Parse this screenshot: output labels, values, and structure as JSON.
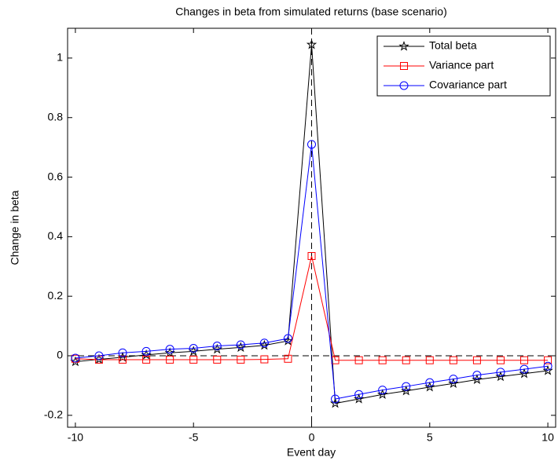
{
  "chart_data": {
    "type": "line",
    "title": "Changes in beta from simulated returns (base scenario)",
    "x_label": "Event day",
    "y_label": "Change in beta",
    "x": [
      -10,
      -9,
      -8,
      -7,
      -6,
      -5,
      -4,
      -3,
      -2,
      -1,
      0,
      1,
      2,
      3,
      4,
      5,
      6,
      7,
      8,
      9,
      10
    ],
    "series": [
      {
        "name": "Total beta",
        "color": "#000000",
        "marker": "star",
        "values": [
          -0.02,
          -0.012,
          -0.005,
          0.003,
          0.01,
          0.015,
          0.022,
          0.028,
          0.035,
          0.05,
          1.045,
          -0.16,
          -0.145,
          -0.13,
          -0.118,
          -0.105,
          -0.093,
          -0.08,
          -0.07,
          -0.06,
          -0.05
        ]
      },
      {
        "name": "Variance part",
        "color": "#ff0000",
        "marker": "square",
        "values": [
          -0.01,
          -0.013,
          -0.013,
          -0.013,
          -0.013,
          -0.013,
          -0.013,
          -0.013,
          -0.012,
          -0.01,
          0.335,
          -0.015,
          -0.015,
          -0.015,
          -0.015,
          -0.015,
          -0.015,
          -0.015,
          -0.015,
          -0.015,
          -0.015
        ]
      },
      {
        "name": "Covariance part",
        "color": "#0000ff",
        "marker": "circle",
        "values": [
          -0.008,
          0.0,
          0.01,
          0.015,
          0.022,
          0.025,
          0.033,
          0.037,
          0.043,
          0.058,
          0.71,
          -0.145,
          -0.13,
          -0.115,
          -0.103,
          -0.09,
          -0.078,
          -0.065,
          -0.055,
          -0.045,
          -0.035
        ]
      }
    ],
    "xlim": [
      -10.33,
      10.33
    ],
    "ylim": [
      -0.24,
      1.1
    ],
    "xticks": [
      -10,
      -5,
      0,
      5,
      10
    ],
    "yticks": [
      -0.2,
      0,
      0.2,
      0.4,
      0.6,
      0.8,
      1
    ],
    "reference_lines": {
      "x": 0,
      "y": 0
    },
    "legend": "upper right",
    "grid": false
  }
}
